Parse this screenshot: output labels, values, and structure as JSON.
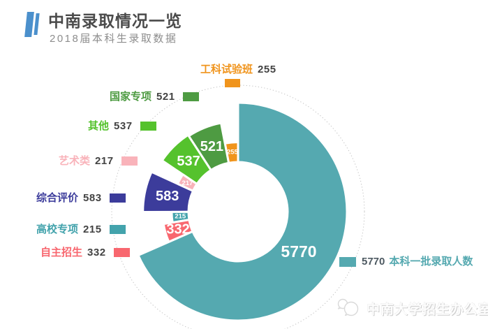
{
  "header": {
    "title": "中南录取情况一览",
    "subtitle": "2018届本科生录取数据",
    "accent_color": "#4B90CC"
  },
  "chart_data": {
    "type": "pie",
    "variant": "nightingale-rose-donut",
    "label_position": "inside",
    "guide_ring": "dotted",
    "legend_position": "right",
    "segments": [
      {
        "label": "工科试验班",
        "value": 255,
        "color": "#F0941C"
      },
      {
        "label": "国家专项",
        "value": 521,
        "color": "#4E9B42"
      },
      {
        "label": "其他",
        "value": 537,
        "color": "#55C22D"
      },
      {
        "label": "艺术类",
        "value": 217,
        "color": "#F9B3BA"
      },
      {
        "label": "综合评价",
        "value": 583,
        "color": "#3C3C9B"
      },
      {
        "label": "高校专项",
        "value": 215,
        "color": "#43A3AC"
      },
      {
        "label": "自主招生",
        "value": 332,
        "color": "#F8676F"
      },
      {
        "label": "本科一批录取人数",
        "value": 5770,
        "color": "#55A9B0"
      }
    ]
  },
  "legend": {
    "value": "5770",
    "label": "本科一批录取人数",
    "color": "#55A9B0"
  },
  "watermark": {
    "text": "中南大学招生办公室",
    "icon": "wechat-icon"
  }
}
